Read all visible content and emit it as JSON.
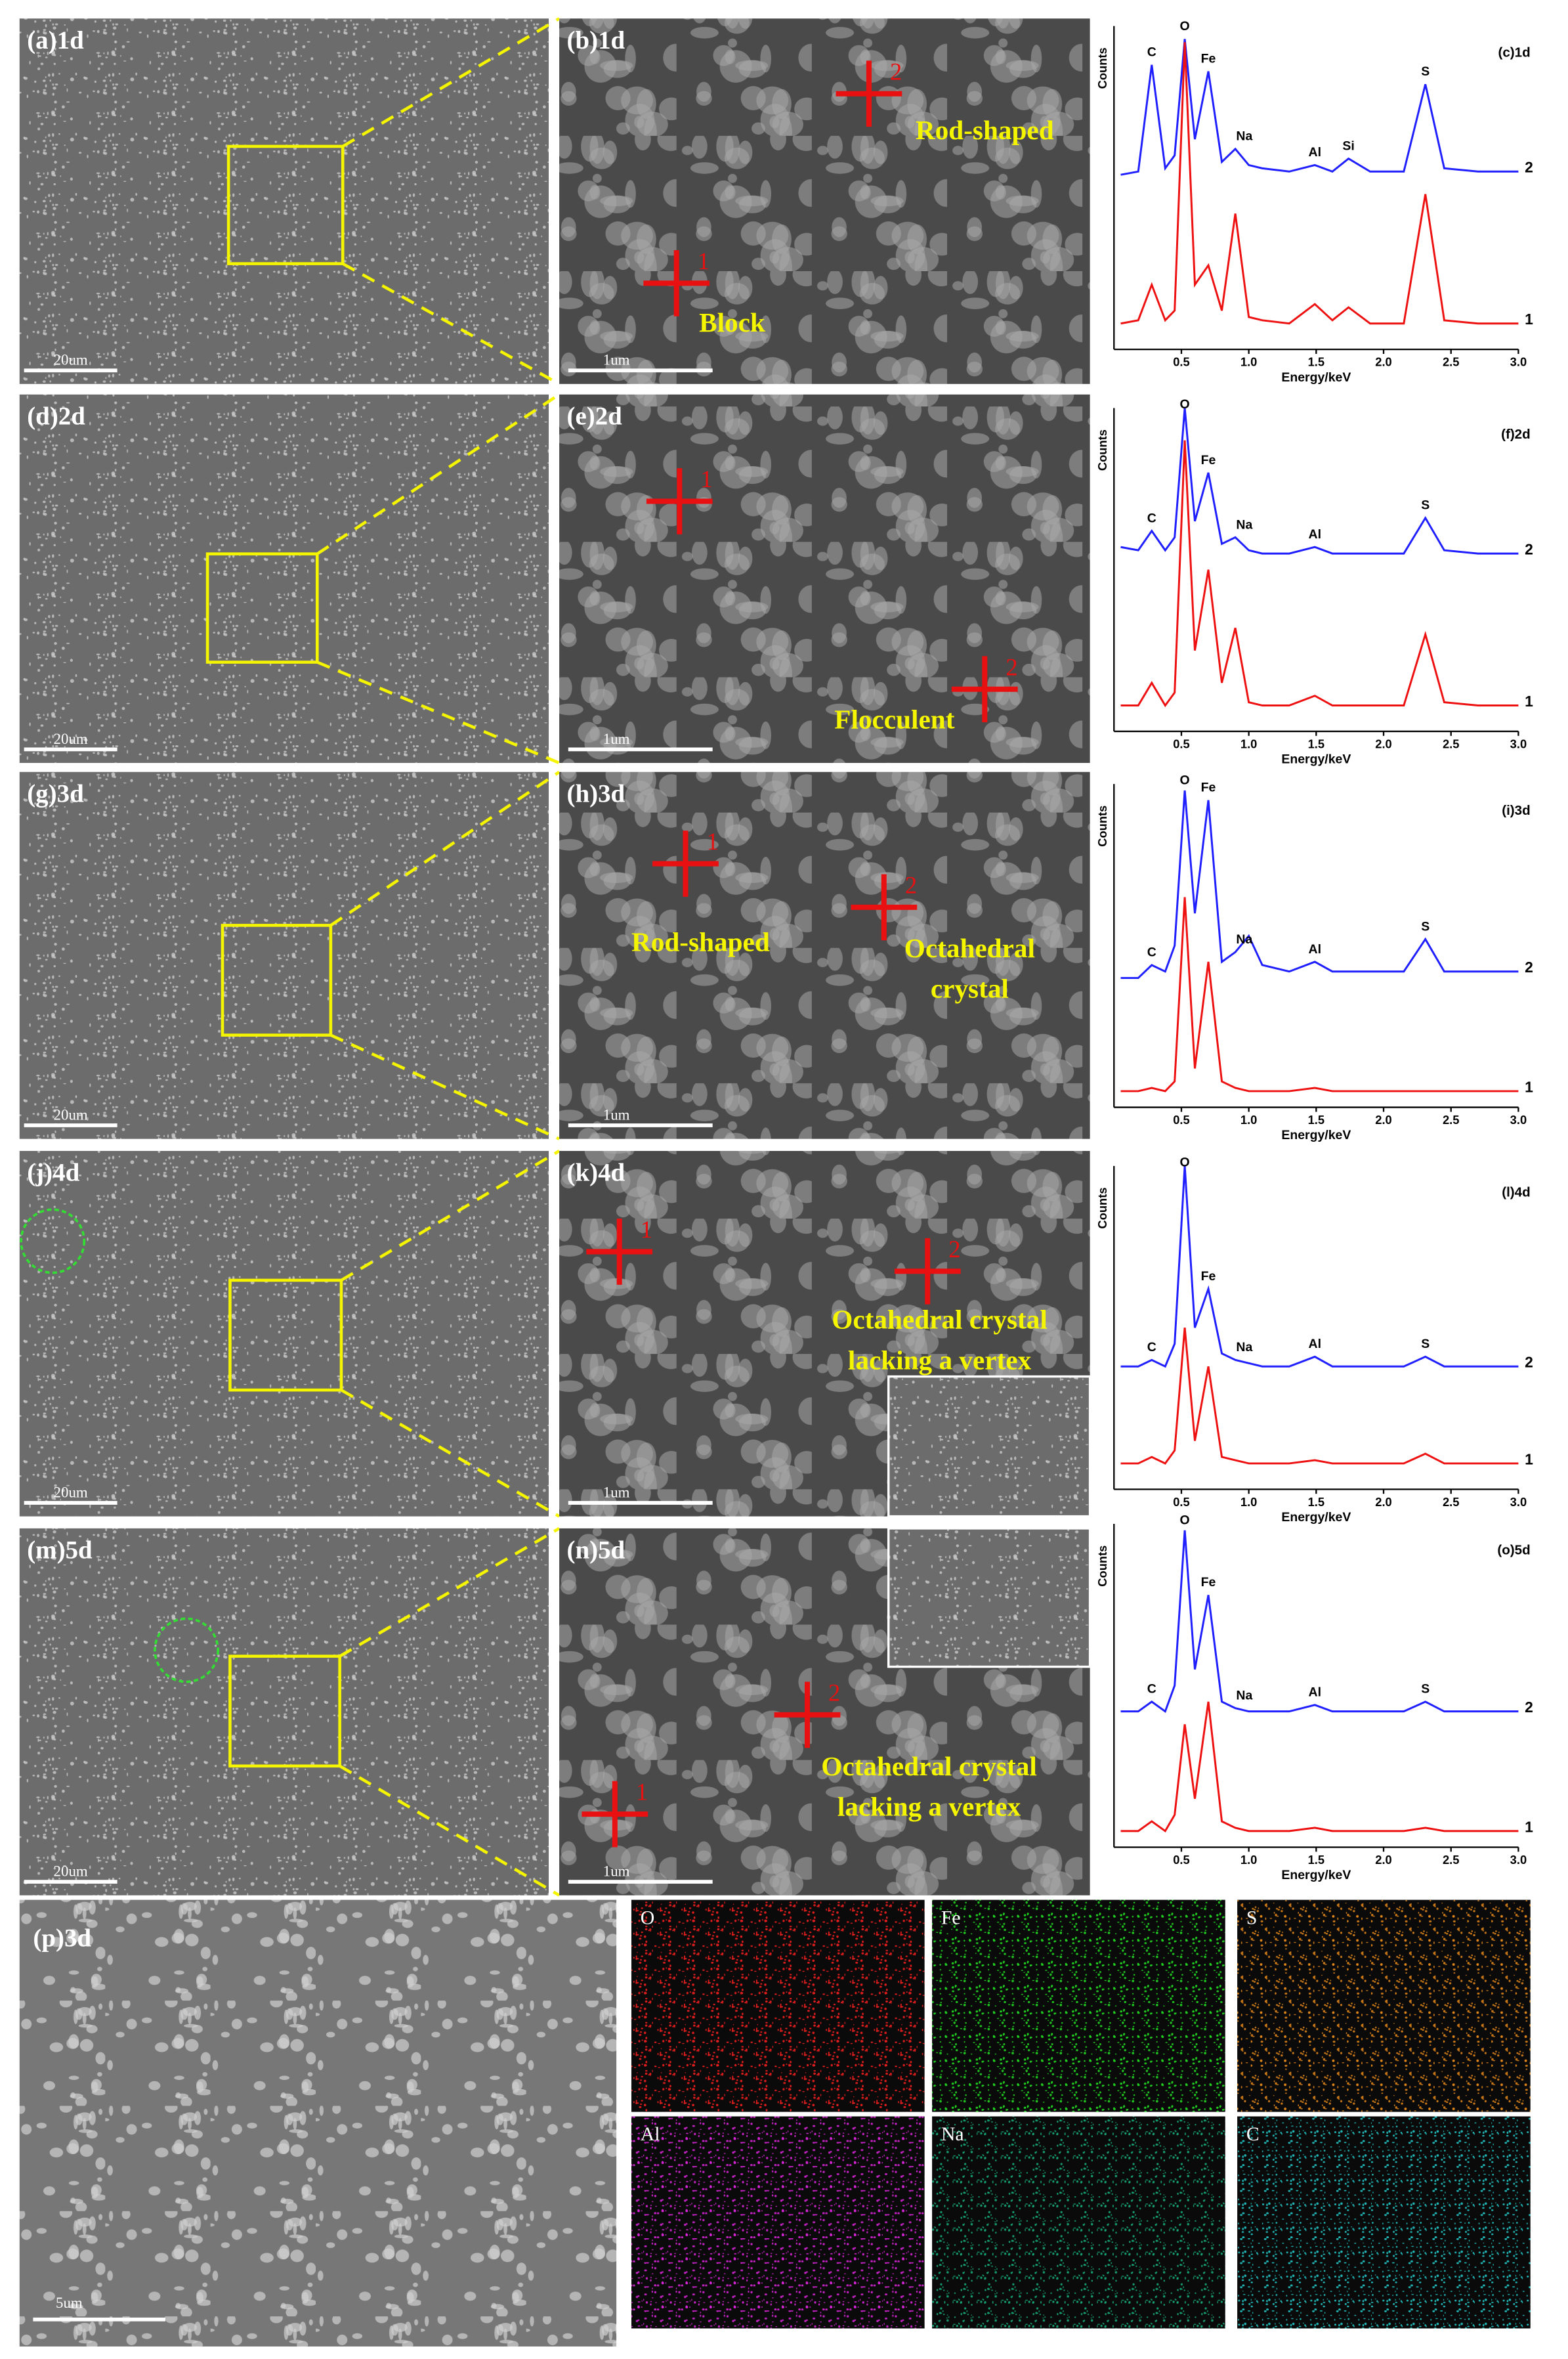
{
  "rows": [
    {
      "overview": {
        "label": "(a)1d",
        "scale_bar": "20um"
      },
      "detail": {
        "label": "(b)1d",
        "scale_bar": "1um",
        "markers": [
          "1",
          "2"
        ],
        "notes": [
          [
            "Rod-shaped"
          ],
          [
            "Block"
          ]
        ]
      },
      "eds": {
        "label": "(c)1d",
        "y_label": "Counts",
        "x_label": "Energy/keV",
        "xlim": [
          0,
          3
        ],
        "ylim": [
          0,
          100
        ],
        "xticks": [
          0.5,
          {
            "value": 1,
            "label": "1.0"
          },
          1.5,
          {
            "value": 2,
            "label": "2.0"
          },
          2.5,
          {
            "value": 3,
            "label": "3.0"
          }
        ],
        "x": [
          0.05,
          0.18,
          0.28,
          0.38,
          0.45,
          0.525,
          0.6,
          0.7,
          0.8,
          0.9,
          1.0,
          1.1,
          1.3,
          1.49,
          1.62,
          1.74,
          1.9,
          2.15,
          2.31,
          2.45,
          2.7,
          3.0
        ],
        "series": [
          {
            "name": "2",
            "color": "#1f1fff",
            "values": [
              54,
              55,
              88,
              56,
              60,
              96,
              65,
              86,
              58,
              62,
              57,
              56,
              55,
              57,
              55,
              59,
              55,
              55,
              82,
              56,
              55,
              55
            ]
          },
          {
            "name": "1",
            "color": "#ee1111",
            "values": [
              8,
              9,
              20,
              9,
              12,
              95,
              20,
              26,
              12,
              42,
              10,
              9,
              8,
              14,
              9,
              13,
              8,
              8,
              48,
              9,
              8,
              8
            ]
          }
        ],
        "elements": [
          "C",
          "O",
          "Fe",
          "Na",
          "Al",
          "Si",
          "S"
        ]
      }
    },
    {
      "overview": {
        "label": "(d)2d",
        "scale_bar": "20um"
      },
      "detail": {
        "label": "(e)2d",
        "scale_bar": "1um",
        "markers": [
          "1",
          "2"
        ],
        "notes": [
          [
            "Flocculent"
          ]
        ]
      },
      "eds": {
        "label": "(f)2d",
        "y_label": "Counts",
        "x_label": "Energy/keV",
        "xlim": [
          0,
          3
        ],
        "ylim": [
          0,
          100
        ],
        "xticks": [
          0.5,
          {
            "value": 1,
            "label": "1.0"
          },
          1.5,
          {
            "value": 2,
            "label": "2.0"
          },
          2.5,
          {
            "value": 3,
            "label": "3.0"
          }
        ],
        "x": [
          0.05,
          0.18,
          0.28,
          0.38,
          0.45,
          0.525,
          0.6,
          0.7,
          0.8,
          0.9,
          1.0,
          1.1,
          1.3,
          1.49,
          1.62,
          1.74,
          1.9,
          2.15,
          2.31,
          2.45,
          2.7,
          3.0
        ],
        "series": [
          {
            "name": "2",
            "color": "#1f1fff",
            "values": [
              57,
              56,
              62,
              56,
              60,
              100,
              65,
              80,
              58,
              60,
              56,
              55,
              55,
              57,
              55,
              55,
              55,
              55,
              66,
              56,
              55,
              55
            ]
          },
          {
            "name": "1",
            "color": "#ee1111",
            "values": [
              8,
              8,
              15,
              8,
              12,
              90,
              25,
              50,
              15,
              32,
              9,
              8,
              8,
              11,
              8,
              8,
              8,
              8,
              30,
              9,
              8,
              8
            ]
          }
        ],
        "elements": [
          "C",
          "O",
          "Fe",
          "Na",
          "Al",
          "S"
        ]
      }
    },
    {
      "overview": {
        "label": "(g)3d",
        "scale_bar": "20um"
      },
      "detail": {
        "label": "(h)3d",
        "scale_bar": "1um",
        "markers": [
          "1",
          "2"
        ],
        "notes": [
          [
            "Rod-shaped"
          ],
          [
            "Octahedral",
            "crystal"
          ]
        ]
      },
      "eds": {
        "label": "(i)3d",
        "y_label": "Counts",
        "x_label": "Energy/keV",
        "xlim": [
          0,
          3
        ],
        "ylim": [
          0,
          100
        ],
        "xticks": [
          0.5,
          {
            "value": 1,
            "label": "1.0"
          },
          1.5,
          {
            "value": 2,
            "label": "2.0"
          },
          2.5,
          {
            "value": 3,
            "label": "3.0"
          }
        ],
        "x": [
          0.05,
          0.18,
          0.28,
          0.38,
          0.45,
          0.525,
          0.6,
          0.7,
          0.8,
          0.9,
          1.0,
          1.1,
          1.3,
          1.49,
          1.62,
          1.74,
          1.9,
          2.15,
          2.31,
          2.45,
          2.7,
          3.0
        ],
        "series": [
          {
            "name": "2",
            "color": "#1f1fff",
            "values": [
              40,
              40,
              44,
              42,
              50,
              98,
              60,
              95,
              45,
              48,
              53,
              44,
              42,
              45,
              42,
              42,
              42,
              42,
              52,
              42,
              42,
              42
            ]
          },
          {
            "name": "1",
            "color": "#ee1111",
            "values": [
              5,
              5,
              6,
              5,
              8,
              65,
              12,
              45,
              8,
              6,
              5,
              5,
              5,
              6,
              5,
              5,
              5,
              5,
              5,
              5,
              5,
              5
            ]
          }
        ],
        "elements": [
          "C",
          "O",
          "Fe",
          "Na",
          "Al",
          "S"
        ]
      }
    },
    {
      "overview": {
        "label": "(j)4d",
        "scale_bar": "20um"
      },
      "detail": {
        "label": "(k)4d",
        "scale_bar": "1um",
        "markers": [
          "1",
          "2"
        ],
        "notes": [
          [
            "Octahedral crystal",
            "lacking a vertex"
          ]
        ]
      },
      "eds": {
        "label": "(l)4d",
        "y_label": "Counts",
        "x_label": "Energy/keV",
        "xlim": [
          0,
          3
        ],
        "ylim": [
          0,
          100
        ],
        "xticks": [
          0.5,
          {
            "value": 1,
            "label": "1.0"
          },
          1.5,
          {
            "value": 2,
            "label": "2.0"
          },
          2.5,
          {
            "value": 3,
            "label": "3.0"
          }
        ],
        "x": [
          0.05,
          0.18,
          0.28,
          0.38,
          0.45,
          0.525,
          0.6,
          0.7,
          0.8,
          0.9,
          1.0,
          1.1,
          1.3,
          1.49,
          1.62,
          1.74,
          1.9,
          2.15,
          2.31,
          2.45,
          2.7,
          3.0
        ],
        "series": [
          {
            "name": "2",
            "color": "#1f1fff",
            "values": [
              38,
              38,
              40,
              38,
              45,
              100,
              50,
              62,
              42,
              40,
              39,
              38,
              38,
              41,
              38,
              38,
              38,
              38,
              41,
              38,
              38,
              38
            ]
          },
          {
            "name": "1",
            "color": "#ee1111",
            "values": [
              8,
              8,
              10,
              8,
              12,
              50,
              15,
              38,
              10,
              9,
              8,
              8,
              8,
              9,
              8,
              8,
              8,
              8,
              11,
              8,
              8,
              8
            ]
          }
        ],
        "elements": [
          "C",
          "O",
          "Fe",
          "Na",
          "Al",
          "S"
        ]
      }
    },
    {
      "overview": {
        "label": "(m)5d",
        "scale_bar": "20um"
      },
      "detail": {
        "label": "(n)5d",
        "scale_bar": "1um",
        "markers": [
          "1",
          "2"
        ],
        "notes": [
          [
            "Octahedral crystal",
            "lacking a vertex"
          ]
        ]
      },
      "eds": {
        "label": "(o)5d",
        "y_label": "Counts",
        "x_label": "Energy/keV",
        "xlim": [
          0,
          3
        ],
        "ylim": [
          0,
          100
        ],
        "xticks": [
          0.5,
          {
            "value": 1,
            "label": "1.0"
          },
          1.5,
          {
            "value": 2,
            "label": "2.0"
          },
          2.5,
          {
            "value": 3,
            "label": "3.0"
          }
        ],
        "x": [
          0.05,
          0.18,
          0.28,
          0.38,
          0.45,
          0.525,
          0.6,
          0.7,
          0.8,
          0.9,
          1.0,
          1.1,
          1.3,
          1.49,
          1.62,
          1.74,
          1.9,
          2.15,
          2.31,
          2.45,
          2.7,
          3.0
        ],
        "series": [
          {
            "name": "2",
            "color": "#1f1fff",
            "values": [
              42,
              42,
              45,
              42,
              50,
              98,
              55,
              78,
              45,
              43,
              42,
              42,
              42,
              44,
              42,
              42,
              42,
              42,
              45,
              42,
              42,
              42
            ]
          },
          {
            "name": "1",
            "color": "#ee1111",
            "values": [
              5,
              5,
              8,
              5,
              10,
              38,
              15,
              45,
              8,
              6,
              5,
              5,
              5,
              6,
              5,
              5,
              5,
              5,
              6,
              5,
              5,
              5
            ]
          }
        ],
        "elements": [
          "C",
          "O",
          "Fe",
          "Na",
          "Al",
          "S"
        ]
      }
    }
  ],
  "mapping": {
    "image": {
      "label": "(p)3d",
      "scale_bar": "5um"
    },
    "maps": [
      {
        "label": "O",
        "color": "#ff2020"
      },
      {
        "label": "Fe",
        "color": "#22e022"
      },
      {
        "label": "S",
        "color": "#e88a1a"
      },
      {
        "label": "Al",
        "color": "#e026e0"
      },
      {
        "label": "Na",
        "color": "#18b07e"
      },
      {
        "label": "C",
        "color": "#26d0d0"
      }
    ]
  }
}
